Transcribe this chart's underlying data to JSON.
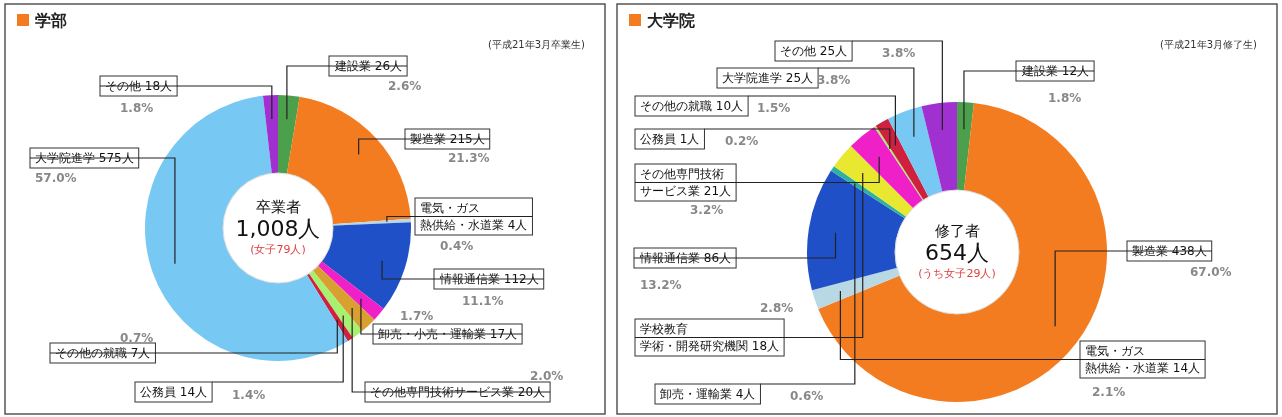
{
  "chart_data": [
    {
      "type": "donut",
      "title": "学部",
      "subtitle": "(平成21年3月卒業生)",
      "categories": [
        "建設業 26人",
        "製造業 215人",
        "電気・ガス熱供給・水道業 4人",
        "情報通信業 112人",
        "卸売・小売・運輸業 17人",
        "その他専門技術サービス業 20人",
        "公務員 14人",
        "その他の就職 7人",
        "大学院進学 575人",
        "その他 18人"
      ],
      "values": [
        2.6,
        21.3,
        0.4,
        11.1,
        1.7,
        2.0,
        1.4,
        0.7,
        57.0,
        1.8
      ],
      "value_labels": [
        "2.6%",
        "21.3%",
        "0.4%",
        "11.1%",
        "1.7%",
        "2.0%",
        "1.4%",
        "0.7%",
        "57.0%",
        "1.8%"
      ],
      "colors": [
        "#4ca04c",
        "#f47c20",
        "#b8d8e4",
        "#2050c8",
        "#f020c8",
        "#d8a030",
        "#a8f070",
        "#d02040",
        "#78c8f4",
        "#a030d0"
      ],
      "annotations": [
        "卒業者",
        "1,008人",
        "(女子79人)"
      ]
    },
    {
      "type": "donut",
      "title": "大学院",
      "subtitle": "(平成21年3月修了生)",
      "categories": [
        "建設業 12人",
        "製造業 438人",
        "電気・ガス熱供給・水道業 14人",
        "情報通信業 86人",
        "卸売・運輸業 4人",
        "学校教育学術・開発研究機関 18人",
        "その他専門技術サービス業 21人",
        "公務員 1人",
        "その他の就職 10人",
        "大学院進学 25人",
        "その他 25人"
      ],
      "values": [
        1.8,
        67.0,
        2.1,
        13.2,
        0.6,
        2.8,
        3.2,
        0.2,
        1.5,
        3.8,
        3.8
      ],
      "value_labels": [
        "1.8%",
        "67.0%",
        "2.1%",
        "13.2%",
        "0.6%",
        "2.8%",
        "3.2%",
        "0.2%",
        "1.5%",
        "3.8%",
        "3.8%"
      ],
      "colors": [
        "#4ca04c",
        "#f47c20",
        "#b8d8e4",
        "#2050c8",
        "#30b0a0",
        "#e8e830",
        "#f020c8",
        "#a8f070",
        "#d02040",
        "#78c8f4",
        "#a030d0"
      ],
      "annotations": [
        "修了者",
        "654人",
        "(うち女子29人)"
      ]
    }
  ]
}
